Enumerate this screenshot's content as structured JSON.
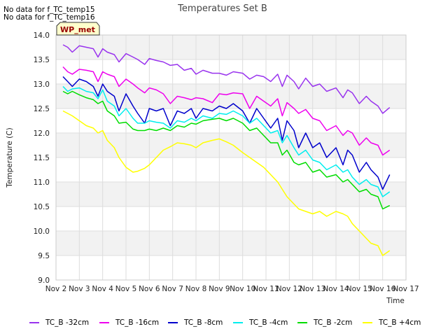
{
  "notices": [
    "No data for f_TC_temp15",
    "No data for f_TC_temp16"
  ],
  "chart_data": {
    "type": "line",
    "title": "Temperatures Set B",
    "xlabel": "Time",
    "ylabel": "Temperature (C)",
    "ylim": [
      9.0,
      14.0
    ],
    "yticks": [
      "9.0",
      "9.5",
      "10.0",
      "10.5",
      "11.0",
      "11.5",
      "12.0",
      "12.5",
      "13.0",
      "13.5",
      "14.0"
    ],
    "xticks": [
      "Nov 2",
      "Nov 3",
      "Nov 4",
      "Nov 5",
      "Nov 6",
      "Nov 7",
      "Nov 8",
      "Nov 9",
      "Nov 10",
      "Nov 11",
      "Nov 12",
      "Nov 13",
      "Nov 14",
      "Nov 15",
      "Nov 16",
      "Nov 17"
    ],
    "xlim": [
      2,
      17
    ],
    "x_unit": "day of November",
    "grid": true,
    "badge": "WP_met",
    "legend_position": "bottom",
    "series": [
      {
        "name": "TC_B -32cm",
        "color": "#9933ee",
        "x": [
          2.3,
          2.5,
          2.7,
          3.0,
          3.3,
          3.6,
          3.8,
          4.0,
          4.2,
          4.5,
          4.7,
          5.0,
          5.3,
          5.5,
          5.8,
          6.0,
          6.3,
          6.6,
          6.9,
          7.2,
          7.5,
          7.8,
          8.0,
          8.3,
          8.7,
          9.0,
          9.3,
          9.6,
          10.0,
          10.3,
          10.6,
          10.9,
          11.2,
          11.5,
          11.7,
          11.9,
          12.2,
          12.4,
          12.7,
          13.0,
          13.3,
          13.6,
          14.0,
          14.3,
          14.5,
          14.7,
          15.0,
          15.3,
          15.5,
          15.8,
          16.0,
          16.3
        ],
        "y": [
          13.8,
          13.75,
          13.65,
          13.78,
          13.75,
          13.72,
          13.55,
          13.72,
          13.65,
          13.6,
          13.45,
          13.62,
          13.55,
          13.5,
          13.4,
          13.52,
          13.48,
          13.45,
          13.38,
          13.4,
          13.28,
          13.32,
          13.2,
          13.28,
          13.22,
          13.22,
          13.18,
          13.25,
          13.22,
          13.1,
          13.18,
          13.15,
          13.05,
          13.2,
          12.95,
          13.18,
          13.05,
          12.9,
          13.12,
          12.95,
          13.0,
          12.85,
          12.92,
          12.72,
          12.88,
          12.82,
          12.6,
          12.75,
          12.65,
          12.55,
          12.4,
          12.52
        ]
      },
      {
        "name": "TC_B -16cm",
        "color": "#ee00ee",
        "x": [
          2.3,
          2.5,
          2.7,
          3.0,
          3.3,
          3.6,
          3.8,
          4.0,
          4.2,
          4.5,
          4.7,
          5.0,
          5.3,
          5.5,
          5.8,
          6.0,
          6.3,
          6.6,
          6.9,
          7.2,
          7.5,
          7.8,
          8.0,
          8.3,
          8.7,
          9.0,
          9.3,
          9.6,
          10.0,
          10.3,
          10.6,
          10.9,
          11.2,
          11.5,
          11.7,
          11.9,
          12.2,
          12.4,
          12.7,
          13.0,
          13.3,
          13.6,
          14.0,
          14.3,
          14.5,
          14.7,
          15.0,
          15.3,
          15.5,
          15.8,
          16.0,
          16.3
        ],
        "y": [
          13.35,
          13.25,
          13.2,
          13.3,
          13.28,
          13.25,
          13.05,
          13.25,
          13.2,
          13.15,
          12.95,
          13.1,
          13.0,
          12.92,
          12.82,
          12.92,
          12.88,
          12.8,
          12.6,
          12.75,
          12.72,
          12.68,
          12.72,
          12.7,
          12.62,
          12.8,
          12.78,
          12.82,
          12.8,
          12.5,
          12.75,
          12.65,
          12.55,
          12.7,
          12.35,
          12.62,
          12.5,
          12.4,
          12.48,
          12.3,
          12.25,
          12.05,
          12.15,
          11.95,
          12.05,
          12.0,
          11.75,
          11.9,
          11.8,
          11.75,
          11.55,
          11.65
        ]
      },
      {
        "name": "TC_B -8cm",
        "color": "#0000cc",
        "x": [
          2.3,
          2.5,
          2.7,
          3.0,
          3.3,
          3.6,
          3.8,
          4.0,
          4.2,
          4.5,
          4.7,
          5.0,
          5.3,
          5.5,
          5.8,
          6.0,
          6.3,
          6.6,
          6.9,
          7.2,
          7.5,
          7.8,
          8.0,
          8.3,
          8.7,
          9.0,
          9.3,
          9.6,
          10.0,
          10.3,
          10.6,
          10.9,
          11.2,
          11.5,
          11.7,
          11.9,
          12.2,
          12.4,
          12.7,
          13.0,
          13.3,
          13.6,
          14.0,
          14.3,
          14.5,
          14.7,
          15.0,
          15.3,
          15.5,
          15.8,
          16.0,
          16.3
        ],
        "y": [
          13.15,
          13.05,
          12.95,
          13.1,
          13.05,
          12.95,
          12.75,
          13.0,
          12.85,
          12.75,
          12.45,
          12.8,
          12.55,
          12.4,
          12.2,
          12.5,
          12.45,
          12.5,
          12.15,
          12.45,
          12.4,
          12.5,
          12.3,
          12.5,
          12.45,
          12.55,
          12.5,
          12.6,
          12.45,
          12.2,
          12.5,
          12.3,
          12.1,
          12.3,
          11.85,
          12.25,
          12.05,
          11.7,
          12.0,
          11.7,
          11.8,
          11.5,
          11.7,
          11.35,
          11.65,
          11.55,
          11.2,
          11.4,
          11.25,
          11.1,
          10.85,
          11.15
        ]
      },
      {
        "name": "TC_B -4cm",
        "color": "#00eeee",
        "x": [
          2.3,
          2.5,
          2.7,
          3.0,
          3.3,
          3.6,
          3.8,
          4.0,
          4.2,
          4.5,
          4.7,
          5.0,
          5.3,
          5.5,
          5.8,
          6.0,
          6.3,
          6.6,
          6.9,
          7.2,
          7.5,
          7.8,
          8.0,
          8.3,
          8.7,
          9.0,
          9.3,
          9.6,
          10.0,
          10.3,
          10.6,
          10.9,
          11.2,
          11.5,
          11.7,
          11.9,
          12.2,
          12.4,
          12.7,
          13.0,
          13.3,
          13.6,
          14.0,
          14.3,
          14.5,
          14.7,
          15.0,
          15.3,
          15.5,
          15.8,
          16.0,
          16.3
        ],
        "y": [
          12.95,
          12.85,
          12.9,
          12.92,
          12.85,
          12.82,
          12.7,
          12.88,
          12.65,
          12.55,
          12.35,
          12.5,
          12.3,
          12.2,
          12.2,
          12.25,
          12.22,
          12.2,
          12.1,
          12.25,
          12.22,
          12.3,
          12.25,
          12.35,
          12.3,
          12.4,
          12.38,
          12.45,
          12.35,
          12.2,
          12.3,
          12.15,
          12.0,
          12.05,
          11.8,
          11.95,
          11.7,
          11.55,
          11.65,
          11.45,
          11.4,
          11.25,
          11.35,
          11.2,
          11.25,
          11.1,
          10.95,
          11.05,
          10.95,
          10.9,
          10.7,
          10.8
        ]
      },
      {
        "name": "TC_B -2cm",
        "color": "#00dd00",
        "x": [
          2.3,
          2.5,
          2.7,
          3.0,
          3.3,
          3.6,
          3.8,
          4.0,
          4.2,
          4.5,
          4.7,
          5.0,
          5.3,
          5.5,
          5.8,
          6.0,
          6.3,
          6.6,
          6.9,
          7.2,
          7.5,
          7.8,
          8.0,
          8.3,
          8.7,
          9.0,
          9.3,
          9.6,
          10.0,
          10.3,
          10.6,
          10.9,
          11.2,
          11.5,
          11.7,
          11.9,
          12.2,
          12.4,
          12.7,
          13.0,
          13.3,
          13.6,
          14.0,
          14.3,
          14.5,
          14.7,
          15.0,
          15.3,
          15.5,
          15.8,
          16.0,
          16.3
        ],
        "y": [
          12.85,
          12.8,
          12.85,
          12.78,
          12.72,
          12.68,
          12.6,
          12.65,
          12.45,
          12.35,
          12.2,
          12.22,
          12.08,
          12.05,
          12.05,
          12.08,
          12.05,
          12.1,
          12.05,
          12.15,
          12.12,
          12.2,
          12.18,
          12.25,
          12.28,
          12.3,
          12.25,
          12.3,
          12.2,
          12.05,
          12.1,
          11.95,
          11.8,
          11.8,
          11.55,
          11.65,
          11.4,
          11.35,
          11.4,
          11.2,
          11.25,
          11.1,
          11.15,
          11.0,
          11.05,
          10.95,
          10.8,
          10.85,
          10.75,
          10.7,
          10.45,
          10.52
        ]
      },
      {
        "name": "TC_B +4cm",
        "color": "#ffff00",
        "x": [
          2.3,
          2.5,
          2.7,
          3.0,
          3.3,
          3.6,
          3.8,
          4.0,
          4.2,
          4.5,
          4.7,
          5.0,
          5.3,
          5.5,
          5.8,
          6.0,
          6.3,
          6.6,
          6.9,
          7.2,
          7.5,
          7.8,
          8.0,
          8.3,
          8.7,
          9.0,
          9.3,
          9.6,
          10.0,
          10.3,
          10.6,
          10.9,
          11.2,
          11.5,
          11.7,
          11.9,
          12.2,
          12.4,
          12.7,
          13.0,
          13.3,
          13.6,
          14.0,
          14.3,
          14.5,
          14.7,
          15.0,
          15.3,
          15.5,
          15.8,
          16.0,
          16.3
        ],
        "y": [
          12.45,
          12.4,
          12.35,
          12.25,
          12.15,
          12.1,
          12.0,
          12.05,
          11.85,
          11.7,
          11.5,
          11.3,
          11.2,
          11.22,
          11.28,
          11.35,
          11.5,
          11.65,
          11.72,
          11.8,
          11.78,
          11.75,
          11.7,
          11.8,
          11.85,
          11.88,
          11.82,
          11.75,
          11.6,
          11.5,
          11.4,
          11.3,
          11.15,
          11.0,
          10.85,
          10.7,
          10.55,
          10.45,
          10.4,
          10.35,
          10.4,
          10.3,
          10.4,
          10.35,
          10.3,
          10.15,
          10.0,
          9.85,
          9.75,
          9.7,
          9.5,
          9.6
        ]
      }
    ]
  }
}
